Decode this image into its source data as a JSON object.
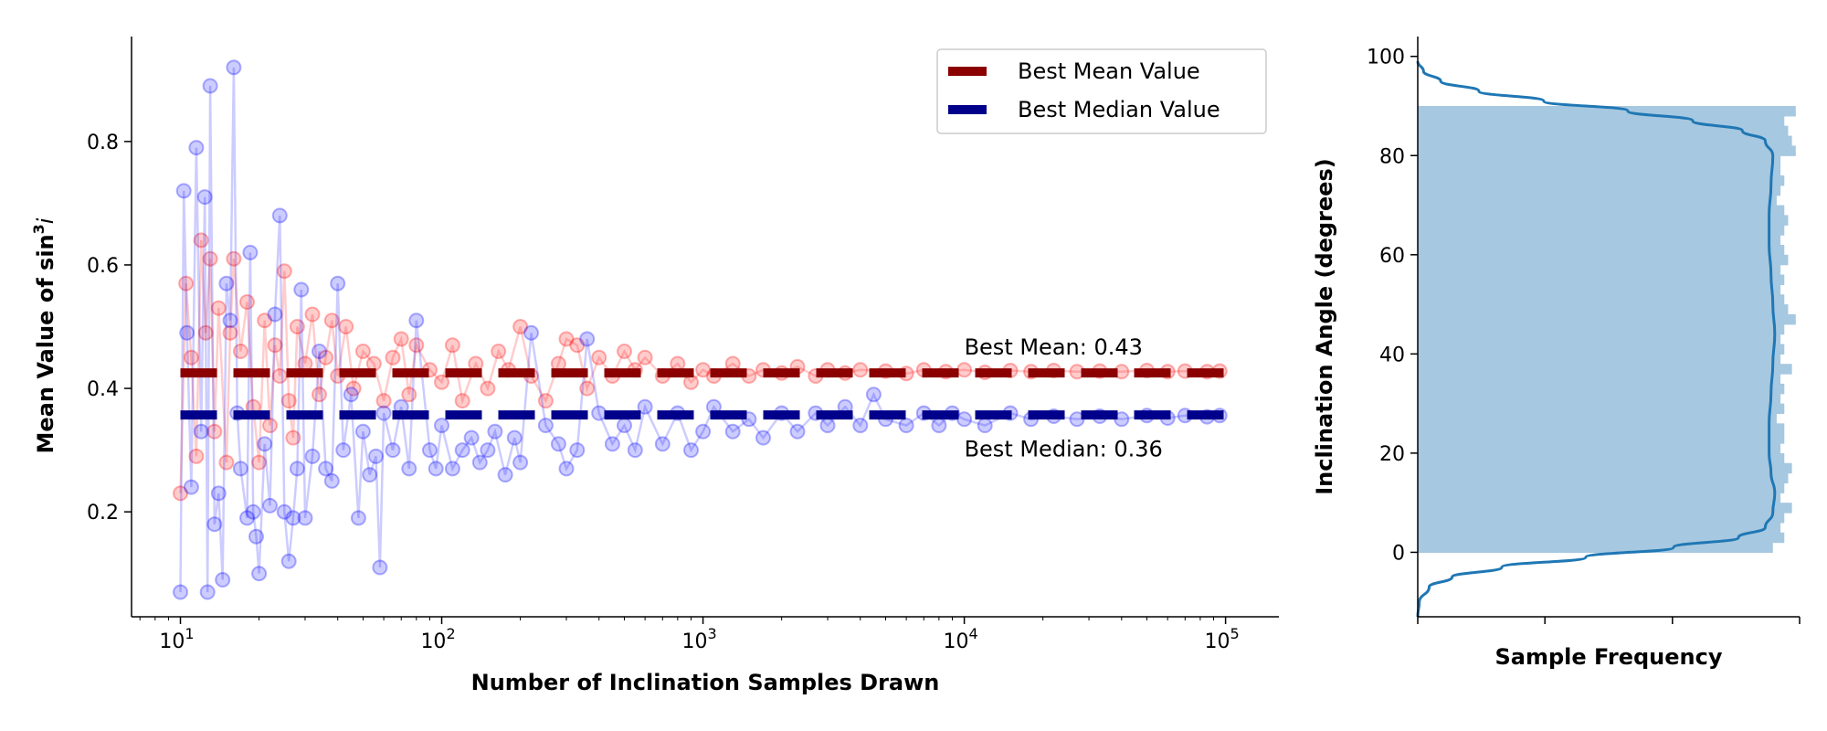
{
  "chart_data": [
    {
      "type": "scatter",
      "xscale": "log",
      "xlim": [
        6.5,
        160000
      ],
      "ylim": [
        0.03,
        0.97
      ],
      "xlabel": "Number of Inclination Samples Drawn",
      "ylabel_prefix": "Mean Value of sin",
      "ylabel_sup": "3",
      "ylabel_suffix": "i",
      "xticks": [
        {
          "value": 10,
          "base": "10",
          "exp": "1"
        },
        {
          "value": 100,
          "base": "10",
          "exp": "2"
        },
        {
          "value": 1000,
          "base": "10",
          "exp": "3"
        },
        {
          "value": 10000,
          "base": "10",
          "exp": "4"
        },
        {
          "value": 100000,
          "base": "10",
          "exp": "5"
        }
      ],
      "yticks": [
        {
          "value": 0.2,
          "label": "0.2"
        },
        {
          "value": 0.4,
          "label": "0.4"
        },
        {
          "value": 0.6,
          "label": "0.6"
        },
        {
          "value": 0.8,
          "label": "0.8"
        }
      ],
      "series": [
        {
          "name": "Mean",
          "color": "#ff0000",
          "points": [
            [
              10,
              0.23
            ],
            [
              10.5,
              0.57
            ],
            [
              11,
              0.45
            ],
            [
              11.5,
              0.29
            ],
            [
              12,
              0.64
            ],
            [
              12.5,
              0.49
            ],
            [
              13,
              0.61
            ],
            [
              13.5,
              0.33
            ],
            [
              14,
              0.53
            ],
            [
              15,
              0.28
            ],
            [
              15.5,
              0.49
            ],
            [
              16,
              0.61
            ],
            [
              17,
              0.46
            ],
            [
              18,
              0.54
            ],
            [
              19,
              0.37
            ],
            [
              20,
              0.28
            ],
            [
              21,
              0.51
            ],
            [
              22,
              0.34
            ],
            [
              23,
              0.47
            ],
            [
              24,
              0.42
            ],
            [
              25,
              0.59
            ],
            [
              26,
              0.38
            ],
            [
              27,
              0.32
            ],
            [
              28,
              0.5
            ],
            [
              30,
              0.44
            ],
            [
              32,
              0.52
            ],
            [
              34,
              0.39
            ],
            [
              36,
              0.45
            ],
            [
              38,
              0.51
            ],
            [
              40,
              0.42
            ],
            [
              43,
              0.5
            ],
            [
              46,
              0.4
            ],
            [
              50,
              0.46
            ],
            [
              55,
              0.44
            ],
            [
              60,
              0.38
            ],
            [
              65,
              0.45
            ],
            [
              70,
              0.48
            ],
            [
              75,
              0.39
            ],
            [
              80,
              0.47
            ],
            [
              90,
              0.43
            ],
            [
              100,
              0.41
            ],
            [
              110,
              0.47
            ],
            [
              120,
              0.38
            ],
            [
              135,
              0.44
            ],
            [
              150,
              0.4
            ],
            [
              165,
              0.46
            ],
            [
              180,
              0.43
            ],
            [
              200,
              0.5
            ],
            [
              220,
              0.42
            ],
            [
              250,
              0.38
            ],
            [
              280,
              0.44
            ],
            [
              300,
              0.48
            ],
            [
              330,
              0.47
            ],
            [
              360,
              0.4
            ],
            [
              400,
              0.45
            ],
            [
              450,
              0.42
            ],
            [
              500,
              0.46
            ],
            [
              550,
              0.43
            ],
            [
              600,
              0.45
            ],
            [
              700,
              0.42
            ],
            [
              800,
              0.44
            ],
            [
              900,
              0.41
            ],
            [
              1000,
              0.43
            ],
            [
              1100,
              0.42
            ],
            [
              1300,
              0.44
            ],
            [
              1500,
              0.42
            ],
            [
              1700,
              0.43
            ],
            [
              2000,
              0.425
            ],
            [
              2300,
              0.435
            ],
            [
              2700,
              0.42
            ],
            [
              3000,
              0.43
            ],
            [
              3500,
              0.425
            ],
            [
              4000,
              0.43
            ],
            [
              5000,
              0.428
            ],
            [
              6000,
              0.424
            ],
            [
              7000,
              0.43
            ],
            [
              8500,
              0.427
            ],
            [
              10000,
              0.43
            ],
            [
              12000,
              0.426
            ],
            [
              15000,
              0.429
            ],
            [
              18000,
              0.427
            ],
            [
              22000,
              0.429
            ],
            [
              27000,
              0.427
            ],
            [
              33000,
              0.428
            ],
            [
              40000,
              0.427
            ],
            [
              50000,
              0.429
            ],
            [
              60000,
              0.427
            ],
            [
              70000,
              0.428
            ],
            [
              85000,
              0.427
            ],
            [
              95000,
              0.428
            ]
          ]
        },
        {
          "name": "Median",
          "color": "#0000ff",
          "points": [
            [
              10,
              0.07
            ],
            [
              10.3,
              0.72
            ],
            [
              10.6,
              0.49
            ],
            [
              11,
              0.24
            ],
            [
              11.5,
              0.79
            ],
            [
              12,
              0.33
            ],
            [
              12.4,
              0.71
            ],
            [
              12.7,
              0.07
            ],
            [
              13,
              0.89
            ],
            [
              13.5,
              0.18
            ],
            [
              14,
              0.23
            ],
            [
              14.5,
              0.09
            ],
            [
              15,
              0.57
            ],
            [
              15.5,
              0.51
            ],
            [
              16,
              0.92
            ],
            [
              16.5,
              0.36
            ],
            [
              17,
              0.27
            ],
            [
              18,
              0.19
            ],
            [
              18.5,
              0.62
            ],
            [
              19,
              0.2
            ],
            [
              19.5,
              0.16
            ],
            [
              20,
              0.1
            ],
            [
              21,
              0.31
            ],
            [
              22,
              0.21
            ],
            [
              23,
              0.52
            ],
            [
              24,
              0.68
            ],
            [
              25,
              0.2
            ],
            [
              26,
              0.12
            ],
            [
              27,
              0.19
            ],
            [
              28,
              0.27
            ],
            [
              29,
              0.56
            ],
            [
              30,
              0.19
            ],
            [
              32,
              0.29
            ],
            [
              34,
              0.46
            ],
            [
              36,
              0.27
            ],
            [
              38,
              0.25
            ],
            [
              40,
              0.57
            ],
            [
              42,
              0.3
            ],
            [
              45,
              0.39
            ],
            [
              48,
              0.19
            ],
            [
              50,
              0.33
            ],
            [
              53,
              0.26
            ],
            [
              56,
              0.29
            ],
            [
              58,
              0.11
            ],
            [
              60,
              0.36
            ],
            [
              65,
              0.3
            ],
            [
              70,
              0.37
            ],
            [
              75,
              0.27
            ],
            [
              80,
              0.51
            ],
            [
              90,
              0.3
            ],
            [
              95,
              0.27
            ],
            [
              100,
              0.34
            ],
            [
              110,
              0.27
            ],
            [
              120,
              0.3
            ],
            [
              130,
              0.32
            ],
            [
              140,
              0.28
            ],
            [
              150,
              0.3
            ],
            [
              160,
              0.33
            ],
            [
              175,
              0.26
            ],
            [
              190,
              0.32
            ],
            [
              200,
              0.28
            ],
            [
              220,
              0.49
            ],
            [
              250,
              0.34
            ],
            [
              280,
              0.31
            ],
            [
              300,
              0.27
            ],
            [
              330,
              0.3
            ],
            [
              360,
              0.48
            ],
            [
              400,
              0.36
            ],
            [
              450,
              0.31
            ],
            [
              500,
              0.34
            ],
            [
              550,
              0.3
            ],
            [
              600,
              0.37
            ],
            [
              700,
              0.31
            ],
            [
              800,
              0.36
            ],
            [
              900,
              0.3
            ],
            [
              1000,
              0.33
            ],
            [
              1100,
              0.37
            ],
            [
              1300,
              0.33
            ],
            [
              1500,
              0.35
            ],
            [
              1700,
              0.32
            ],
            [
              2000,
              0.36
            ],
            [
              2300,
              0.33
            ],
            [
              2700,
              0.36
            ],
            [
              3000,
              0.34
            ],
            [
              3500,
              0.37
            ],
            [
              4000,
              0.34
            ],
            [
              4500,
              0.39
            ],
            [
              5000,
              0.35
            ],
            [
              6000,
              0.34
            ],
            [
              7000,
              0.36
            ],
            [
              8000,
              0.34
            ],
            [
              9000,
              0.36
            ],
            [
              10000,
              0.35
            ],
            [
              12000,
              0.34
            ],
            [
              15000,
              0.36
            ],
            [
              18000,
              0.35
            ],
            [
              22000,
              0.355
            ],
            [
              27000,
              0.35
            ],
            [
              33000,
              0.355
            ],
            [
              40000,
              0.35
            ],
            [
              50000,
              0.356
            ],
            [
              60000,
              0.352
            ],
            [
              70000,
              0.356
            ],
            [
              85000,
              0.354
            ],
            [
              95000,
              0.356
            ]
          ]
        }
      ],
      "reference_lines": [
        {
          "label": "Best Mean Value",
          "value": 0.425,
          "color": "#8b0000"
        },
        {
          "label": "Best Median Value",
          "value": 0.357,
          "color": "#00008b"
        }
      ],
      "annotations": [
        {
          "text": "Best Mean: 0.43",
          "x": 10000,
          "y": 0.455
        },
        {
          "text": "Best Median: 0.36",
          "x": 10000,
          "y": 0.29
        }
      ],
      "legend_position": "top-right"
    },
    {
      "type": "histogram",
      "orientation": "horizontal",
      "ylabel": "Inclination Angle (degrees)",
      "xlabel": "Sample Frequency",
      "ylim": [
        -13,
        104
      ],
      "yticks": [
        {
          "value": 0,
          "label": "0"
        },
        {
          "value": 20,
          "label": "20"
        },
        {
          "value": 40,
          "label": "40"
        },
        {
          "value": 60,
          "label": "60"
        },
        {
          "value": 80,
          "label": "80"
        },
        {
          "value": 100,
          "label": "100"
        }
      ],
      "bar_color": "#a6c8e0",
      "kde_color": "#1f77b4",
      "bins": [
        0,
        2,
        4,
        6,
        8,
        10,
        12,
        14,
        16,
        18,
        20,
        22,
        24,
        26,
        28,
        30,
        32,
        34,
        36,
        38,
        40,
        42,
        44,
        46,
        48,
        50,
        52,
        54,
        56,
        58,
        60,
        62,
        64,
        66,
        68,
        70,
        72,
        74,
        76,
        78,
        80,
        82,
        84,
        86,
        88,
        90
      ],
      "frequencies": [
        0.93,
        0.96,
        0.95,
        0.96,
        0.98,
        0.95,
        0.96,
        0.97,
        0.98,
        0.96,
        0.95,
        0.96,
        0.96,
        0.94,
        0.96,
        0.95,
        0.96,
        0.95,
        0.98,
        0.95,
        0.96,
        0.95,
        0.96,
        0.99,
        0.97,
        0.96,
        0.95,
        0.96,
        0.95,
        0.97,
        0.96,
        0.95,
        0.96,
        0.97,
        0.96,
        0.94,
        0.95,
        0.96,
        0.95,
        0.95,
        0.99,
        0.98,
        0.97,
        0.96,
        0.99
      ],
      "kde": [
        [
          -13,
          0.0
        ],
        [
          -10,
          0.004
        ],
        [
          -7,
          0.03
        ],
        [
          -5,
          0.09
        ],
        [
          -3,
          0.22
        ],
        [
          -1,
          0.44
        ],
        [
          1,
          0.67
        ],
        [
          3,
          0.84
        ],
        [
          5,
          0.91
        ],
        [
          8,
          0.93
        ],
        [
          12,
          0.935
        ],
        [
          16,
          0.925
        ],
        [
          20,
          0.92
        ],
        [
          26,
          0.92
        ],
        [
          32,
          0.925
        ],
        [
          38,
          0.93
        ],
        [
          44,
          0.935
        ],
        [
          50,
          0.93
        ],
        [
          56,
          0.925
        ],
        [
          62,
          0.92
        ],
        [
          68,
          0.92
        ],
        [
          74,
          0.925
        ],
        [
          80,
          0.93
        ],
        [
          83,
          0.91
        ],
        [
          85,
          0.85
        ],
        [
          87,
          0.72
        ],
        [
          89,
          0.55
        ],
        [
          91,
          0.33
        ],
        [
          93,
          0.16
        ],
        [
          95,
          0.06
        ],
        [
          97,
          0.015
        ],
        [
          99,
          0.0
        ]
      ]
    }
  ]
}
